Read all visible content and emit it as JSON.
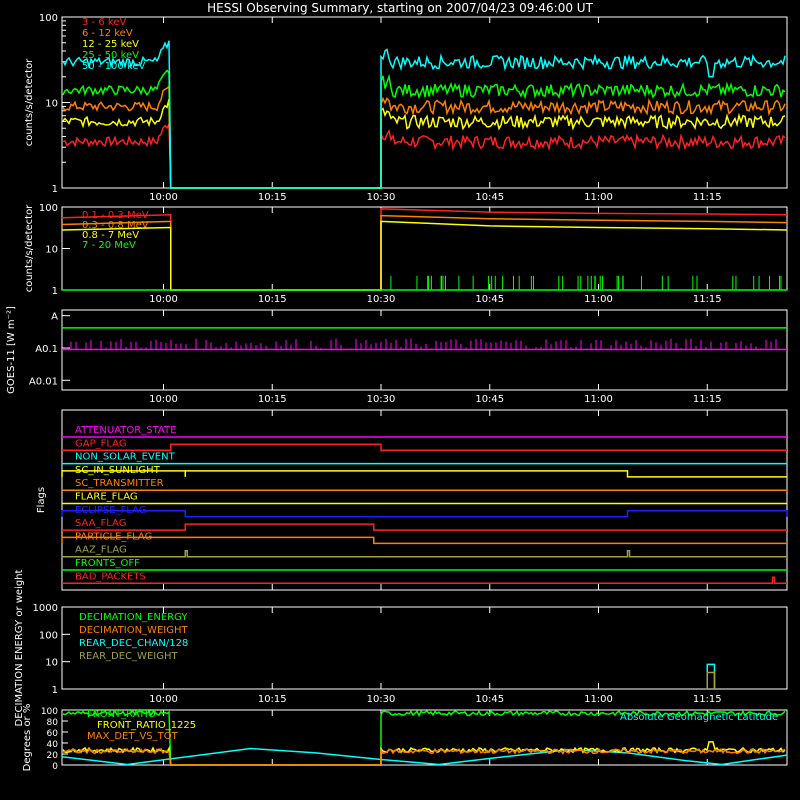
{
  "title": "HESSI Observing Summary, starting on 2007/04/23 09:46:00 UT",
  "time_ticks": [
    "10:00",
    "10:15",
    "10:30",
    "10:45",
    "11:00",
    "11:15"
  ],
  "colors": {
    "red": "#ff2020",
    "orange": "#ff8000",
    "yellow": "#ffff00",
    "green": "#00ff00",
    "cyan": "#00ffff",
    "magenta": "#ff00ff",
    "blue": "#2020ff",
    "olive": "#a0a040"
  },
  "chart_data": [
    {
      "type": "line",
      "title": "",
      "ylabel": "counts/s/detector",
      "yscale": "log",
      "ylim": [
        1,
        100
      ],
      "ytick_labels": [
        "1",
        "10",
        "100"
      ],
      "xlim": [
        "09:46",
        "11:26"
      ],
      "data_gap": [
        "10:01",
        "10:30"
      ],
      "series": [
        {
          "name": "3 - 6 keV",
          "color": "#ff2020",
          "level": 3.5,
          "points": [
            [
              "09:46",
              3.5
            ],
            [
              "09:55",
              3.5
            ],
            [
              "10:01",
              4
            ],
            [
              "10:01",
              1
            ],
            [
              "10:30",
              1
            ],
            [
              "10:30",
              3.5
            ],
            [
              "11:26",
              3.5
            ]
          ]
        },
        {
          "name": "6 - 12 keV",
          "color": "#ff8000",
          "level": 9,
          "points": [
            [
              "09:46",
              9
            ],
            [
              "09:55",
              9
            ],
            [
              "10:01",
              15
            ],
            [
              "10:01",
              1
            ],
            [
              "10:30",
              1
            ],
            [
              "10:30",
              10
            ],
            [
              "11:26",
              9
            ]
          ]
        },
        {
          "name": "12 - 25 keV",
          "color": "#ffff00",
          "level": 6,
          "points": [
            [
              "09:46",
              6
            ],
            [
              "09:55",
              6.5
            ],
            [
              "10:01",
              12
            ],
            [
              "10:01",
              1
            ],
            [
              "10:30",
              1
            ],
            [
              "10:30",
              7
            ],
            [
              "11:26",
              6
            ]
          ]
        },
        {
          "name": "25 - 50 keV",
          "color": "#00ff00",
          "level": 14,
          "points": [
            [
              "09:46",
              14
            ],
            [
              "09:55",
              14
            ],
            [
              "10:01",
              25
            ],
            [
              "10:01",
              1
            ],
            [
              "10:30",
              1
            ],
            [
              "10:30",
              17
            ],
            [
              "11:26",
              14
            ]
          ]
        },
        {
          "name": "50 - 100 keV",
          "color": "#00ffff",
          "level": 30,
          "points": [
            [
              "09:46",
              30
            ],
            [
              "09:55",
              32
            ],
            [
              "10:01",
              55
            ],
            [
              "10:01",
              1
            ],
            [
              "10:30",
              1
            ],
            [
              "10:30",
              42
            ],
            [
              "10:45",
              36
            ],
            [
              "11:15",
              35
            ],
            [
              "11:15",
              20
            ],
            [
              "11:16",
              35
            ],
            [
              "11:26",
              30
            ]
          ]
        }
      ]
    },
    {
      "type": "line",
      "title": "",
      "ylabel": "counts/s/detector",
      "yscale": "log",
      "ylim": [
        1,
        100
      ],
      "ytick_labels": [
        "1",
        "10",
        "100"
      ],
      "series": [
        {
          "name": "0.1 - 0.3 MeV",
          "color": "#ff2020",
          "points": [
            [
              "09:46",
              55
            ],
            [
              "10:01",
              65
            ],
            [
              "10:01",
              1
            ],
            [
              "10:30",
              1
            ],
            [
              "10:30",
              90
            ],
            [
              "10:45",
              75
            ],
            [
              "11:00",
              70
            ],
            [
              "11:15",
              68
            ],
            [
              "11:26",
              65
            ]
          ]
        },
        {
          "name": "0.3 - 0.8 MeV",
          "color": "#ff8000",
          "points": [
            [
              "09:46",
              38
            ],
            [
              "10:01",
              45
            ],
            [
              "10:01",
              1
            ],
            [
              "10:30",
              1
            ],
            [
              "10:30",
              62
            ],
            [
              "10:45",
              52
            ],
            [
              "11:00",
              48
            ],
            [
              "11:15",
              45
            ],
            [
              "11:26",
              42
            ]
          ]
        },
        {
          "name": "0.8 - 7 MeV",
          "color": "#ffff00",
          "points": [
            [
              "09:46",
              28
            ],
            [
              "10:01",
              32
            ],
            [
              "10:01",
              1
            ],
            [
              "10:30",
              1
            ],
            [
              "10:30",
              45
            ],
            [
              "10:45",
              35
            ],
            [
              "11:00",
              32
            ],
            [
              "11:15",
              30
            ],
            [
              "11:26",
              28
            ]
          ]
        },
        {
          "name": "7 - 20 MeV",
          "color": "#00ff00",
          "points": [
            [
              "09:46",
              1
            ],
            [
              "11:26",
              1
            ]
          ]
        }
      ]
    },
    {
      "type": "line",
      "title": "",
      "ylabel": "GOES-11 [W m⁻²]",
      "yscale": "log",
      "ytick_labels": [
        "A0.01",
        "A0.1",
        "A"
      ],
      "series": [
        {
          "name": "",
          "color": "#00ff00",
          "points": [
            [
              "09:46",
              0.42
            ],
            [
              "11:26",
              0.42
            ]
          ]
        },
        {
          "name": "",
          "color": "#ff00ff",
          "points": [
            [
              "09:46",
              0.09
            ],
            [
              "11:26",
              0.09
            ]
          ]
        }
      ]
    },
    {
      "type": "line",
      "title": "",
      "ylabel": "Flags",
      "flags": [
        {
          "name": "ATTENUATOR_STATE",
          "color": "#ff00ff",
          "on": []
        },
        {
          "name": "GAP_FLAG",
          "color": "#ff2020",
          "on": [
            [
              "10:01",
              "10:30"
            ]
          ]
        },
        {
          "name": "NON_SOLAR_EVENT",
          "color": "#00ffff",
          "on": []
        },
        {
          "name": "SC_IN_SUNLIGHT",
          "color": "#ffff00",
          "on": [
            [
              "09:46",
              "10:03"
            ],
            [
              "10:03",
              "11:04"
            ]
          ]
        },
        {
          "name": "SC_TRANSMITTER",
          "color": "#ff8000",
          "on": []
        },
        {
          "name": "FLARE_FLAG",
          "color": "#ffff00",
          "on": []
        },
        {
          "name": "ECLIPSE_FLAG",
          "color": "#2020ff",
          "on": [
            [
              "09:46",
              "10:03"
            ],
            [
              "11:04",
              "11:26"
            ]
          ]
        },
        {
          "name": "SAA_FLAG",
          "color": "#ff2020",
          "on": [
            [
              "10:03",
              "10:29"
            ]
          ]
        },
        {
          "name": "PARTICLE_FLAG",
          "color": "#ff8000",
          "on": [
            [
              "09:46",
              "10:29"
            ]
          ]
        },
        {
          "name": "AAZ_FLAG",
          "color": "#a0a040",
          "on": [
            [
              "10:03",
              "10:03"
            ],
            [
              "11:04",
              "11:04"
            ]
          ]
        },
        {
          "name": "FRONTS_OFF",
          "color": "#00ff00",
          "on": []
        },
        {
          "name": "BAD_PACKETS",
          "color": "#ff2020",
          "on": [
            [
              "11:24",
              "11:24"
            ]
          ]
        }
      ]
    },
    {
      "type": "line",
      "title": "",
      "ylabel": "DECIMATION ENERGY or weight",
      "yscale": "log",
      "ylim": [
        1,
        1000
      ],
      "ytick_labels": [
        "1",
        "10",
        "100",
        "1000"
      ],
      "series": [
        {
          "name": "DECIMATION_ENERGY",
          "color": "#00ff00",
          "points": []
        },
        {
          "name": "DECIMATION_WEIGHT",
          "color": "#ff8000",
          "points": []
        },
        {
          "name": "REAR_DEC_CHAN/128",
          "color": "#00ffff",
          "points": [
            [
              "11:15",
              1
            ],
            [
              "11:15",
              8
            ],
            [
              "11:16",
              8
            ],
            [
              "11:16",
              1
            ]
          ]
        },
        {
          "name": "REAR_DEC_WEIGHT",
          "color": "#a0a040",
          "points": [
            [
              "11:15",
              1
            ],
            [
              "11:15",
              4
            ],
            [
              "11:16",
              4
            ],
            [
              "11:16",
              1
            ]
          ]
        }
      ]
    },
    {
      "type": "line",
      "title": "",
      "ylabel": "Degrees or %",
      "ylim": [
        0,
        100
      ],
      "ytick_labels": [
        "0",
        "20",
        "40",
        "60",
        "80",
        "100"
      ],
      "annotation": "Absolute Geomagnetic Latitude",
      "series": [
        {
          "name": "FRONT_RATIO",
          "color": "#00ff00",
          "points": [
            [
              "09:46",
              94
            ],
            [
              "10:01",
              96
            ],
            [
              "10:01",
              0
            ],
            [
              "10:30",
              0
            ],
            [
              "10:30",
              95
            ],
            [
              "11:26",
              93
            ]
          ]
        },
        {
          "name": "FRONT_RATIO_1225",
          "color": "#ffff00",
          "points": [
            [
              "09:46",
              26
            ],
            [
              "10:01",
              28
            ],
            [
              "10:01",
              0
            ],
            [
              "10:30",
              0
            ],
            [
              "10:30",
              27
            ],
            [
              "11:15",
              27
            ],
            [
              "11:15",
              42
            ],
            [
              "11:16",
              27
            ],
            [
              "11:26",
              27
            ]
          ]
        },
        {
          "name": "MAX_DET_VS_TOT",
          "color": "#ff8000",
          "points": [
            [
              "09:46",
              24
            ],
            [
              "10:01",
              25
            ],
            [
              "10:01",
              0
            ],
            [
              "10:30",
              0
            ],
            [
              "10:30",
              25
            ],
            [
              "11:26",
              24
            ]
          ]
        },
        {
          "name": "",
          "color": "#00ffff",
          "points": [
            [
              "09:46",
              15
            ],
            [
              "09:55",
              1
            ],
            [
              "10:05",
              18
            ],
            [
              "10:12",
              30
            ],
            [
              "10:21",
              22
            ],
            [
              "10:30",
              10
            ],
            [
              "10:38",
              1
            ],
            [
              "10:47",
              15
            ],
            [
              "10:56",
              28
            ],
            [
              "11:04",
              22
            ],
            [
              "11:12",
              8
            ],
            [
              "11:17",
              1
            ],
            [
              "11:26",
              18
            ]
          ]
        }
      ]
    }
  ]
}
